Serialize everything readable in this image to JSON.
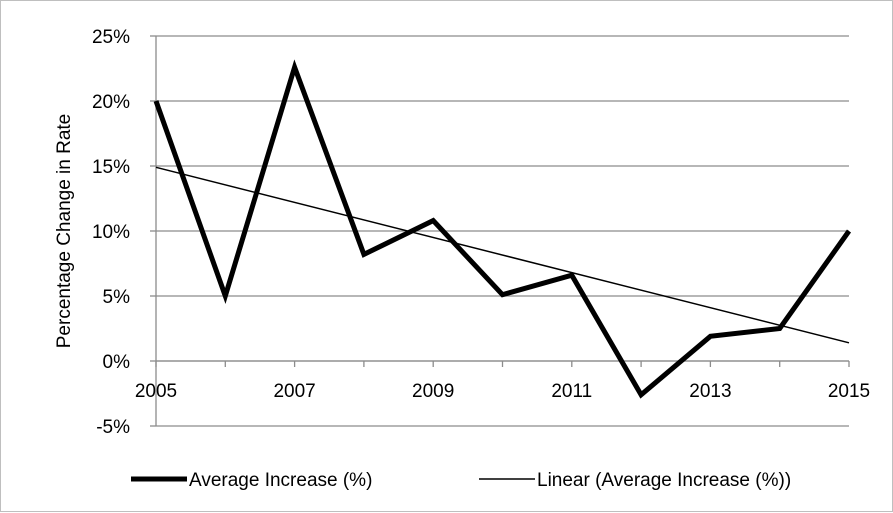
{
  "chart_data": {
    "type": "line",
    "title": "",
    "xlabel": "",
    "ylabel": "Percentage Change in Rate",
    "x": [
      2005,
      2006,
      2007,
      2008,
      2009,
      2010,
      2011,
      2012,
      2013,
      2014,
      2015
    ],
    "x_tick_labels": [
      "2005",
      "2007",
      "2009",
      "2011",
      "2013",
      "2015"
    ],
    "y_tick_labels": [
      "25%",
      "20%",
      "15%",
      "10%",
      "5%",
      "0%",
      "-5%"
    ],
    "ylim": [
      -5,
      25
    ],
    "xlim": [
      2005,
      2015
    ],
    "grid": "horizontal",
    "legend_position": "bottom",
    "series": [
      {
        "name": "Average Increase (%)",
        "values": [
          20,
          5,
          22.6,
          8.2,
          10.8,
          5.1,
          6.6,
          -2.6,
          1.9,
          2.5,
          10
        ],
        "color": "#000000",
        "line_style": "thick"
      },
      {
        "name": "Linear (Average Increase (%))",
        "values": [
          14.9,
          1.4
        ],
        "x": [
          2005,
          2015
        ],
        "color": "#000000",
        "line_style": "thin"
      }
    ]
  }
}
